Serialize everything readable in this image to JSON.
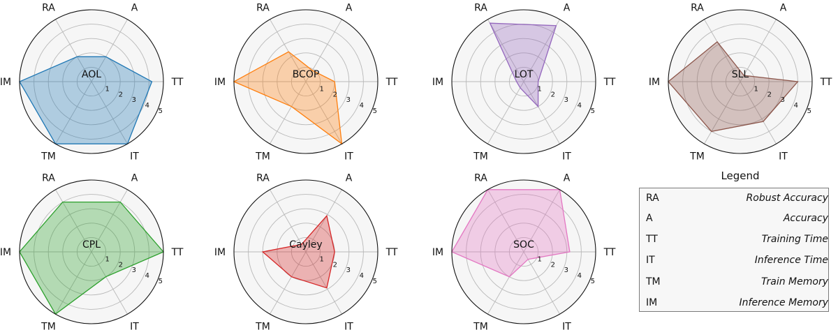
{
  "chart_data": [
    {
      "type": "radar",
      "title": "AOL",
      "axes": [
        "RA",
        "A",
        "TT",
        "IT",
        "TM",
        "IM"
      ],
      "rlim": [
        0,
        5
      ],
      "rticks": [
        "1",
        "2",
        "3",
        "4",
        "5"
      ],
      "values": [
        2.0,
        2.0,
        4.2,
        5.0,
        5.0,
        5.0
      ],
      "color": "#1f77b4"
    },
    {
      "type": "radar",
      "title": "BCOP",
      "axes": [
        "RA",
        "A",
        "TT",
        "IT",
        "TM",
        "IM"
      ],
      "rlim": [
        0,
        5
      ],
      "rticks": [
        "1",
        "2",
        "3",
        "4",
        "5"
      ],
      "values": [
        2.4,
        0.9,
        2.0,
        5.0,
        2.0,
        5.0
      ],
      "color": "#ff7f0e"
    },
    {
      "type": "radar",
      "title": "LOT",
      "axes": [
        "RA",
        "A",
        "TT",
        "IT",
        "TM",
        "IM"
      ],
      "rlim": [
        0,
        5
      ],
      "rticks": [
        "1",
        "2",
        "3",
        "4",
        "5"
      ],
      "values": [
        4.7,
        4.5,
        1.0,
        2.0,
        0.5,
        0.5
      ],
      "color": "#9467bd"
    },
    {
      "type": "radar",
      "title": "SLL",
      "axes": [
        "RA",
        "A",
        "TT",
        "IT",
        "TM",
        "IM"
      ],
      "rlim": [
        0,
        5
      ],
      "rticks": [
        "1",
        "2",
        "3",
        "4",
        "5"
      ],
      "values": [
        3.2,
        0.5,
        4.0,
        3.2,
        4.0,
        5.0
      ],
      "color": "#8c564b"
    },
    {
      "type": "radar",
      "title": "CPL",
      "axes": [
        "RA",
        "A",
        "TT",
        "IT",
        "TM",
        "IM"
      ],
      "rlim": [
        0,
        5
      ],
      "rticks": [
        "1",
        "2",
        "3",
        "4",
        "5"
      ],
      "values": [
        4.0,
        4.0,
        5.0,
        2.0,
        5.0,
        5.0
      ],
      "color": "#2ca02c"
    },
    {
      "type": "radar",
      "title": "Cayley",
      "axes": [
        "RA",
        "A",
        "TT",
        "IT",
        "TM",
        "IM"
      ],
      "rlim": [
        0,
        5
      ],
      "rticks": [
        "1",
        "2",
        "3",
        "4",
        "5"
      ],
      "values": [
        0.6,
        2.9,
        2.0,
        2.9,
        2.0,
        3.0
      ],
      "color": "#d62728"
    },
    {
      "type": "radar",
      "title": "SOC",
      "axes": [
        "RA",
        "A",
        "TT",
        "IT",
        "TM",
        "IM"
      ],
      "rlim": [
        0,
        5
      ],
      "rticks": [
        "1",
        "2",
        "3",
        "4",
        "5"
      ],
      "values": [
        5.0,
        5.0,
        3.2,
        0.6,
        2.0,
        5.0
      ],
      "color": "#e377c2"
    }
  ],
  "legend": {
    "title": "Legend",
    "items": [
      {
        "abbr": "RA",
        "full": "Robust Accuracy"
      },
      {
        "abbr": "A",
        "full": "Accuracy"
      },
      {
        "abbr": "TT",
        "full": "Training Time"
      },
      {
        "abbr": "IT",
        "full": "Inference Time"
      },
      {
        "abbr": "TM",
        "full": "Train Memory"
      },
      {
        "abbr": "IM",
        "full": "Inference Memory"
      }
    ]
  }
}
